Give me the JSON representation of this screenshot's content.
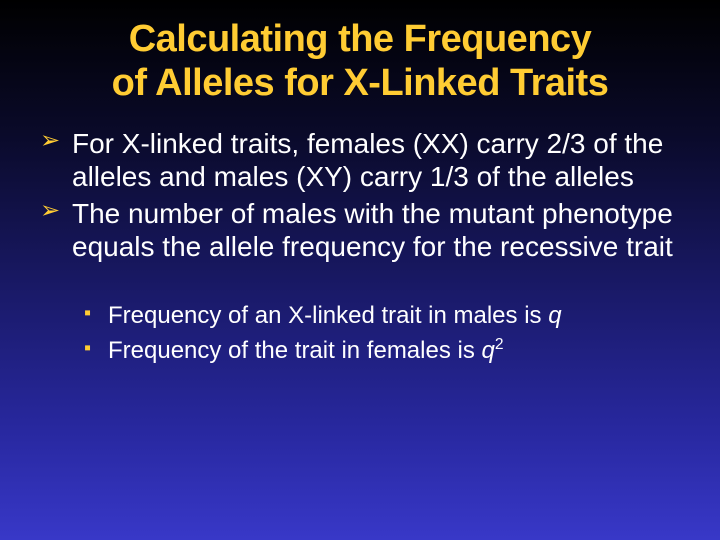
{
  "slide": {
    "background": {
      "gradient_stops": [
        "#000000",
        "#0a0a2a",
        "#1a1a6a",
        "#2828a0",
        "#3838c8"
      ],
      "gradient_positions": [
        0,
        25,
        55,
        80,
        100
      ],
      "direction": "180deg"
    },
    "title": {
      "line1": "Calculating the Frequency",
      "line2": "of Alleles for X-Linked Traits",
      "color": "#ffcc33",
      "fontsize": 38,
      "weight": "bold",
      "align": "center"
    },
    "bullets": {
      "level1": [
        {
          "text": "For X-linked traits, females (XX) carry 2/3 of the alleles and males (XY) carry 1/3 of the alleles"
        },
        {
          "text": "The number of males with the mutant phenotype equals the allele frequency for the recessive trait"
        }
      ],
      "level2": [
        {
          "prefix": "Frequency of an X-linked trait in males is ",
          "var": "q",
          "sup": ""
        },
        {
          "prefix": "Frequency of the trait in females is ",
          "var": "q",
          "sup": "2"
        }
      ],
      "level1_color": "#ffffff",
      "level1_fontsize": 28,
      "level1_marker": "➢",
      "level1_marker_color": "#ffcc33",
      "level2_color": "#ffffff",
      "level2_fontsize": 24,
      "level2_marker": "▪",
      "level2_marker_color": "#ffcc33"
    }
  }
}
